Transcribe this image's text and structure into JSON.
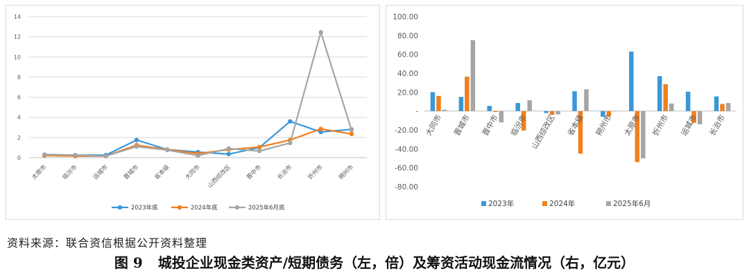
{
  "chart_data": [
    {
      "type": "line",
      "categories": [
        "太原市",
        "临汾市",
        "运城市",
        "晋城市",
        "省本级",
        "大同市",
        "山西综改区",
        "晋中市",
        "长治市",
        "忻州市",
        "朔州市"
      ],
      "ylim": [
        0,
        14
      ],
      "yticks": [
        "0",
        "2",
        "4",
        "6",
        "8",
        "10",
        "12",
        "14"
      ],
      "grid": true,
      "legend_position": "bottom",
      "series": [
        {
          "name": "2023年底",
          "color": "#3a97d8",
          "values": [
            0.3,
            0.25,
            0.25,
            1.75,
            0.8,
            0.55,
            0.35,
            1.0,
            3.6,
            2.55,
            2.8
          ]
        },
        {
          "name": "2024年底",
          "color": "#f07f1e",
          "values": [
            0.2,
            0.15,
            0.15,
            1.25,
            0.8,
            0.4,
            0.8,
            1.05,
            1.75,
            2.85,
            2.35
          ]
        },
        {
          "name": "2025年6月底",
          "color": "#a5a5a5",
          "values": [
            0.3,
            0.25,
            0.15,
            1.1,
            0.75,
            0.2,
            0.9,
            0.65,
            1.45,
            12.45,
            2.75
          ]
        }
      ]
    },
    {
      "type": "bar",
      "categories": [
        "大同市",
        "晋城市",
        "晋中市",
        "临汾市",
        "山西综改区",
        "省本级",
        "朔州市",
        "太原市",
        "忻州市",
        "运城市",
        "长治市"
      ],
      "ylim": [
        -80,
        100
      ],
      "yticks": [
        "-80.00",
        "-60.00",
        "-40.00",
        "-20.00",
        "-",
        "20.00",
        "40.00",
        "60.00",
        "80.00",
        "100.00"
      ],
      "grid": false,
      "legend_position": "bottom",
      "series": [
        {
          "name": "2023年",
          "color": "#3a97d8",
          "values": [
            20,
            15,
            5.5,
            8.5,
            -2,
            21,
            -6,
            63,
            37,
            20.5,
            15.5
          ]
        },
        {
          "name": "2024年",
          "color": "#f07f1e",
          "values": [
            16,
            36.5,
            -1,
            -20.5,
            -4,
            -45,
            -5.5,
            -54,
            28.5,
            -12.5,
            7.5
          ]
        },
        {
          "name": "2025年6月",
          "color": "#a5a5a5",
          "values": [
            1.5,
            75,
            -12,
            11.5,
            -3.5,
            23,
            0,
            -50,
            8,
            -14,
            8.5
          ]
        }
      ]
    }
  ],
  "note": {
    "source": "资料来源：联合资信根据公开资料整理"
  },
  "caption": {
    "figure_no": "图 9",
    "text": "城投企业现金类资产/短期债务（左，倍）及筹资活动现金流情况（右，亿元）"
  }
}
